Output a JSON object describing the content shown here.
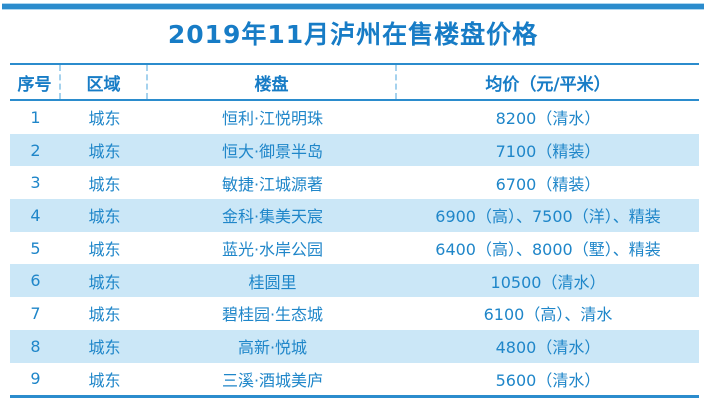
{
  "title": "2019年11月泸州在售楼盘价格",
  "colors": {
    "accent_blue": "#2b8ccd",
    "text_blue": "#1f86c9",
    "title_blue": "#177cc6",
    "band_blue": "#cbe7f7",
    "dashed_separator_blue": "#a5d2ee"
  },
  "chart_data": {
    "type": "table",
    "title": "2019年11月泸州在售楼盘价格",
    "columns": [
      "序号",
      "区域",
      "楼盘",
      "均价（元/平米）"
    ],
    "rows": [
      [
        "1",
        "城东",
        "恒利·江悦明珠",
        "8200（清水）"
      ],
      [
        "2",
        "城东",
        "恒大·御景半岛",
        "7100（精装）"
      ],
      [
        "3",
        "城东",
        "敏捷·江城源著",
        "6700（精装）"
      ],
      [
        "4",
        "城东",
        "金科·集美天宸",
        "6900（高）、7500（洋）、精装"
      ],
      [
        "5",
        "城东",
        "蓝光·水岸公园",
        "6400（高）、8000（墅）、精装"
      ],
      [
        "6",
        "城东",
        "桂圆里",
        "10500（清水）"
      ],
      [
        "7",
        "城东",
        "碧桂园·生态城",
        "6100（高）、清水"
      ],
      [
        "8",
        "城东",
        "高新·悦城",
        "4800（清水）"
      ],
      [
        "9",
        "城东",
        "三溪·酒城美庐",
        "5600（清水）"
      ]
    ],
    "layout": {
      "zebra_striping": true,
      "striped_rows": [
        2,
        4,
        6,
        8
      ],
      "column_alignment": "center"
    }
  }
}
